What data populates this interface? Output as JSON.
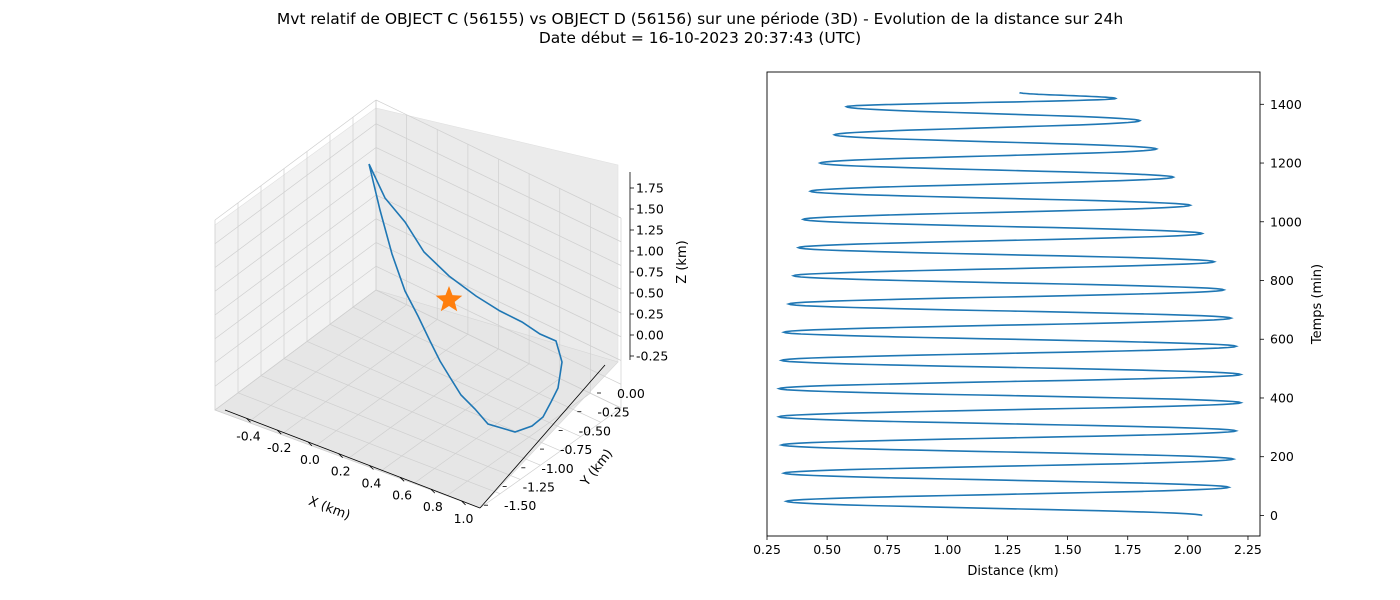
{
  "title": {
    "line1": "Mvt relatif de OBJECT C (56155) vs OBJECT D (56156) sur une période (3D) - Evolution de la distance sur 24h",
    "line2": "Date début = 16-10-2023 20:37:43 (UTC)"
  },
  "colors": {
    "series": "#1f77b4",
    "marker": "#ff7f0e",
    "pane": "#f2f2f2",
    "grid": "#cccccc"
  },
  "chart_data": [
    {
      "type": "line3d",
      "xlabel": "X (km)",
      "ylabel": "Y (km)",
      "zlabel": "Z (km)",
      "xlim": [
        -0.5,
        1.0
      ],
      "ylim": [
        -1.6,
        0.15
      ],
      "zlim": [
        -0.3,
        1.85
      ],
      "x_ticks": [
        "-0.4",
        "-0.2",
        "0.0",
        "0.2",
        "0.4",
        "0.6",
        "0.8",
        "1.0"
      ],
      "y_ticks": [
        "0.00",
        "-0.25",
        "-0.50",
        "-0.75",
        "-1.00",
        "-1.25",
        "-1.50"
      ],
      "z_ticks": [
        "1.75",
        "1.50",
        "1.25",
        "1.00",
        "0.75",
        "0.50",
        "0.25",
        "0.00",
        "-0.25"
      ],
      "trajectory": [
        {
          "x": 0.9,
          "y": -1.6,
          "z": -0.05
        },
        {
          "x": 0.85,
          "y": -1.45,
          "z": 0.0
        },
        {
          "x": 0.78,
          "y": -1.3,
          "z": 0.15
        },
        {
          "x": 0.65,
          "y": -1.1,
          "z": 0.35
        },
        {
          "x": 0.45,
          "y": -0.85,
          "z": 0.6
        },
        {
          "x": 0.2,
          "y": -0.5,
          "z": 0.9
        },
        {
          "x": -0.05,
          "y": -0.1,
          "z": 1.3
        },
        {
          "x": -0.25,
          "y": 0.05,
          "z": 1.55
        },
        {
          "x": -0.35,
          "y": 0.0,
          "z": 1.75
        },
        {
          "x": -0.25,
          "y": -0.15,
          "z": 1.5
        },
        {
          "x": -0.1,
          "y": -0.35,
          "z": 1.2
        },
        {
          "x": 0.05,
          "y": -0.5,
          "z": 0.9
        },
        {
          "x": 0.25,
          "y": -0.7,
          "z": 0.55
        },
        {
          "x": 0.45,
          "y": -0.9,
          "z": 0.3
        },
        {
          "x": 0.6,
          "y": -1.05,
          "z": 0.1
        },
        {
          "x": 0.7,
          "y": -1.15,
          "z": -0.05
        },
        {
          "x": 0.78,
          "y": -1.3,
          "z": -0.12
        },
        {
          "x": 0.85,
          "y": -1.45,
          "z": -0.1
        },
        {
          "x": 0.9,
          "y": -1.6,
          "z": -0.05
        }
      ],
      "reference_point": {
        "x": 0.0,
        "y": 0.0,
        "z": 0.0
      }
    },
    {
      "type": "line",
      "xlabel": "Distance (km)",
      "ylabel": "Temps (min)",
      "xlim": [
        0.25,
        2.3
      ],
      "ylim": [
        -70,
        1510
      ],
      "x_ticks": [
        0.25,
        0.5,
        0.75,
        1.0,
        1.25,
        1.5,
        1.75,
        2.0,
        2.25
      ],
      "y_ticks": [
        0,
        200,
        400,
        600,
        800,
        1000,
        1200,
        1400
      ],
      "period_min": 96,
      "duration_min": 1440,
      "extrema": [
        {
          "t": 0,
          "d": 2.06
        },
        {
          "t": 48,
          "d": 0.33
        },
        {
          "t": 96,
          "d": 2.17
        },
        {
          "t": 144,
          "d": 0.32
        },
        {
          "t": 192,
          "d": 2.19
        },
        {
          "t": 240,
          "d": 0.31
        },
        {
          "t": 288,
          "d": 2.2
        },
        {
          "t": 336,
          "d": 0.3
        },
        {
          "t": 384,
          "d": 2.22
        },
        {
          "t": 432,
          "d": 0.3
        },
        {
          "t": 480,
          "d": 2.22
        },
        {
          "t": 528,
          "d": 0.31
        },
        {
          "t": 576,
          "d": 2.2
        },
        {
          "t": 624,
          "d": 0.32
        },
        {
          "t": 672,
          "d": 2.18
        },
        {
          "t": 720,
          "d": 0.34
        },
        {
          "t": 768,
          "d": 2.15
        },
        {
          "t": 816,
          "d": 0.36
        },
        {
          "t": 864,
          "d": 2.11
        },
        {
          "t": 912,
          "d": 0.38
        },
        {
          "t": 960,
          "d": 2.06
        },
        {
          "t": 1008,
          "d": 0.4
        },
        {
          "t": 1056,
          "d": 2.01
        },
        {
          "t": 1104,
          "d": 0.43
        },
        {
          "t": 1152,
          "d": 1.94
        },
        {
          "t": 1200,
          "d": 0.47
        },
        {
          "t": 1248,
          "d": 1.87
        },
        {
          "t": 1296,
          "d": 0.53
        },
        {
          "t": 1344,
          "d": 1.8
        },
        {
          "t": 1392,
          "d": 0.58
        },
        {
          "t": 1420,
          "d": 1.7
        },
        {
          "t": 1440,
          "d": 1.3
        }
      ]
    }
  ]
}
